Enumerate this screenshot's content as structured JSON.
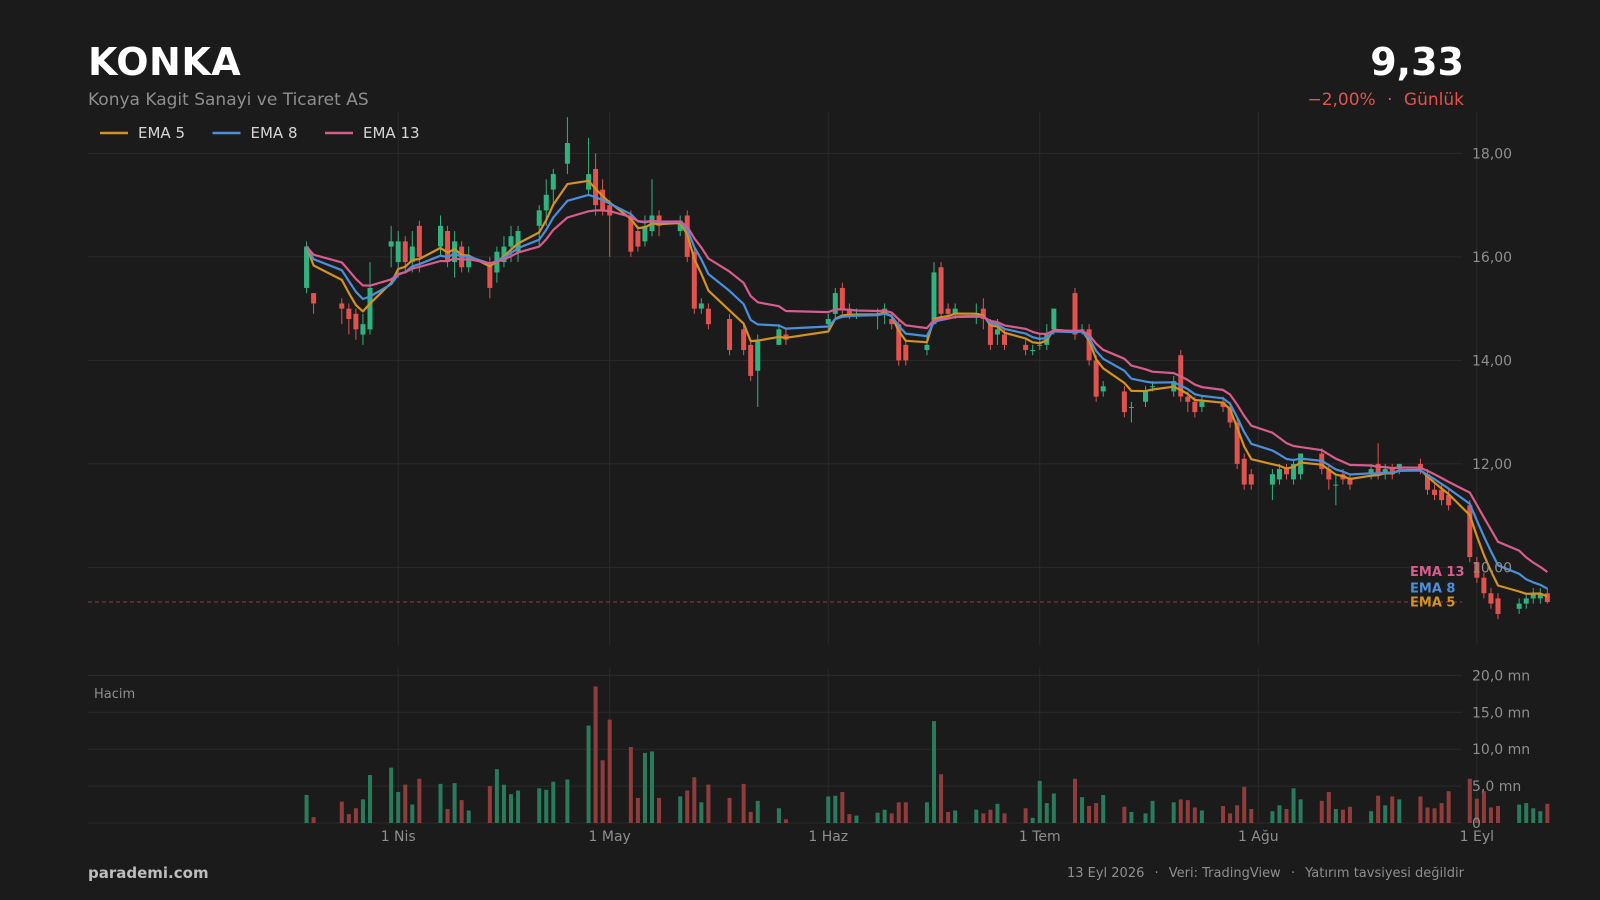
{
  "header": {
    "ticker": "KONKA",
    "company": "Konya Kagit Sanayi ve Ticaret AS",
    "price": "9,33",
    "change": "−2,00%",
    "separator": "·",
    "period": "Günlük",
    "change_color": "#e0534f"
  },
  "footer": {
    "brand": "parademi.com",
    "date": "13 Eyl 2026",
    "source": "Veri: TradingView",
    "disclaimer": "Yatırım tavsiyesi değildir"
  },
  "chart_data": {
    "type": "candlestick",
    "last_price": 9.33,
    "price_axis": {
      "min": 8.5,
      "max": 18.8,
      "ticks": [
        10,
        12,
        14,
        16,
        18
      ],
      "tick_labels": [
        "10,00",
        "12,00",
        "14,00",
        "16,00",
        "18,00"
      ]
    },
    "volume_axis": {
      "title": "Hacim",
      "min": 0,
      "max": 21,
      "ticks": [
        0,
        5,
        10,
        15,
        20
      ],
      "tick_labels": [
        "0",
        "5,0 mn",
        "10,0 mn",
        "15,0 mn",
        "20,0 mn"
      ]
    },
    "x_axis": {
      "start_day": 0,
      "end_day": 178,
      "ticks": [
        {
          "day": 22,
          "label": "1 Nis"
        },
        {
          "day": 52,
          "label": "1 May"
        },
        {
          "day": 83,
          "label": "1 Haz"
        },
        {
          "day": 113,
          "label": "1 Tem"
        },
        {
          "day": 144,
          "label": "1 Ağu"
        },
        {
          "day": 175,
          "label": "1 Eyl"
        }
      ]
    },
    "colors": {
      "up": "#2fb380",
      "down": "#e0534f",
      "volume_up": "#2a7a5c",
      "volume_down": "#8f3d3b",
      "ema5": "#d4921f",
      "ema8": "#4a8fdc",
      "ema13": "#d85c8e",
      "grid": "#2b2b2b",
      "last_line": "#8f3d3b"
    },
    "legend": [
      {
        "key": "ema5",
        "label": "EMA 5"
      },
      {
        "key": "ema8",
        "label": "EMA 8"
      },
      {
        "key": "ema13",
        "label": "EMA 13"
      }
    ],
    "candles": [
      [
        9,
        15.4,
        16.2,
        16.3,
        15.3,
        3.8
      ],
      [
        10,
        15.3,
        15.1,
        15.3,
        14.9,
        0.8
      ],
      [
        14,
        15.1,
        15.0,
        15.2,
        14.7,
        2.9
      ],
      [
        15,
        15.0,
        14.8,
        15.1,
        14.5,
        1.2
      ],
      [
        16,
        14.9,
        14.6,
        15.0,
        14.4,
        2.0
      ],
      [
        17,
        14.5,
        14.7,
        14.9,
        14.3,
        3.2
      ],
      [
        18,
        14.6,
        15.4,
        15.9,
        14.5,
        6.5
      ],
      [
        21,
        16.2,
        16.3,
        16.6,
        15.8,
        7.5
      ],
      [
        22,
        15.9,
        16.3,
        16.5,
        15.6,
        4.2
      ],
      [
        23,
        16.3,
        15.9,
        16.4,
        15.7,
        5.2
      ],
      [
        24,
        15.9,
        16.2,
        16.5,
        15.7,
        2.5
      ],
      [
        25,
        16.6,
        16.0,
        16.7,
        15.7,
        6.0
      ],
      [
        28,
        16.2,
        16.6,
        16.8,
        16.0,
        5.3
      ],
      [
        29,
        16.5,
        15.9,
        16.6,
        15.8,
        1.9
      ],
      [
        30,
        15.9,
        16.3,
        16.5,
        15.6,
        5.4
      ],
      [
        31,
        16.2,
        15.8,
        16.3,
        15.7,
        3.1
      ],
      [
        32,
        15.8,
        16.0,
        16.2,
        15.7,
        1.7
      ],
      [
        35,
        15.9,
        15.4,
        16.0,
        15.2,
        5.0
      ],
      [
        36,
        15.7,
        16.1,
        16.2,
        15.5,
        7.3
      ],
      [
        37,
        15.9,
        16.2,
        16.4,
        15.8,
        5.2
      ],
      [
        38,
        16.2,
        16.4,
        16.6,
        15.9,
        3.9
      ],
      [
        39,
        16.1,
        16.5,
        16.6,
        15.9,
        4.4
      ],
      [
        42,
        16.6,
        16.9,
        17.0,
        16.2,
        4.7
      ],
      [
        43,
        16.9,
        17.2,
        17.5,
        16.6,
        4.5
      ],
      [
        44,
        17.3,
        17.6,
        17.7,
        17.0,
        5.6
      ],
      [
        46,
        17.8,
        18.2,
        18.7,
        17.6,
        5.9
      ],
      [
        49,
        17.3,
        17.6,
        18.3,
        17.2,
        13.2
      ],
      [
        50,
        17.7,
        17.0,
        18.0,
        16.8,
        18.5
      ],
      [
        51,
        17.3,
        16.9,
        17.5,
        16.8,
        8.5
      ],
      [
        52,
        17.0,
        16.8,
        17.1,
        16.0,
        14.0
      ],
      [
        55,
        16.8,
        16.1,
        16.9,
        16.0,
        10.3
      ],
      [
        56,
        16.5,
        16.2,
        16.6,
        16.1,
        3.4
      ],
      [
        57,
        16.3,
        16.6,
        16.8,
        16.2,
        9.5
      ],
      [
        58,
        16.5,
        16.8,
        17.5,
        16.4,
        9.7
      ],
      [
        59,
        16.8,
        16.6,
        16.9,
        16.4,
        3.4
      ],
      [
        62,
        16.5,
        16.7,
        16.8,
        16.4,
        3.6
      ],
      [
        63,
        16.8,
        16.0,
        16.9,
        15.9,
        4.4
      ],
      [
        64,
        16.1,
        15.0,
        16.2,
        14.9,
        6.2
      ],
      [
        65,
        15.0,
        15.1,
        15.2,
        14.9,
        2.8
      ],
      [
        66,
        15.0,
        14.7,
        15.1,
        14.6,
        5.2
      ],
      [
        69,
        14.8,
        14.2,
        14.9,
        14.1,
        3.4
      ],
      [
        71,
        14.6,
        14.2,
        14.7,
        14.1,
        5.3
      ],
      [
        72,
        14.3,
        13.7,
        14.4,
        13.6,
        1.5
      ],
      [
        73,
        13.8,
        14.4,
        14.5,
        13.1,
        3.0
      ],
      [
        76,
        14.3,
        14.6,
        14.7,
        14.3,
        2.0
      ],
      [
        77,
        14.5,
        14.4,
        14.6,
        14.3,
        0.5
      ],
      [
        83,
        14.7,
        14.8,
        14.9,
        14.6,
        3.6
      ],
      [
        84,
        14.9,
        15.3,
        15.4,
        14.8,
        3.7
      ],
      [
        85,
        15.4,
        15.0,
        15.5,
        14.9,
        4.2
      ],
      [
        86,
        15.0,
        14.9,
        15.1,
        14.8,
        1.2
      ],
      [
        87,
        14.9,
        14.9,
        15.0,
        14.8,
        1.0
      ],
      [
        90,
        14.9,
        14.9,
        15.0,
        14.6,
        1.4
      ],
      [
        91,
        14.9,
        15.0,
        15.1,
        14.7,
        1.8
      ],
      [
        92,
        14.8,
        14.7,
        14.9,
        14.6,
        1.3
      ],
      [
        93,
        14.7,
        14.0,
        14.8,
        13.9,
        2.8
      ],
      [
        94,
        14.3,
        14.0,
        14.4,
        13.9,
        2.8
      ],
      [
        97,
        14.2,
        14.3,
        14.5,
        14.1,
        2.8
      ],
      [
        98,
        14.7,
        15.7,
        15.9,
        14.7,
        13.8
      ],
      [
        99,
        15.8,
        14.9,
        15.9,
        14.8,
        6.6
      ],
      [
        100,
        15.0,
        14.9,
        15.1,
        14.8,
        1.5
      ],
      [
        101,
        14.9,
        15.0,
        15.1,
        14.8,
        1.7
      ],
      [
        104,
        14.9,
        14.9,
        15.1,
        14.7,
        1.8
      ],
      [
        105,
        15.0,
        14.8,
        15.2,
        14.6,
        1.3
      ],
      [
        106,
        14.7,
        14.3,
        14.8,
        14.2,
        1.8
      ],
      [
        107,
        14.5,
        14.6,
        14.8,
        14.3,
        2.6
      ],
      [
        108,
        14.5,
        14.3,
        14.6,
        14.2,
        1.3
      ],
      [
        111,
        14.3,
        14.2,
        14.4,
        14.1,
        2.0
      ],
      [
        112,
        14.2,
        14.2,
        14.3,
        14.1,
        0.7
      ],
      [
        113,
        14.3,
        14.3,
        14.5,
        14.2,
        5.7
      ],
      [
        114,
        14.3,
        14.5,
        14.7,
        14.2,
        2.7
      ],
      [
        115,
        14.6,
        15.0,
        15.0,
        14.5,
        4.0
      ],
      [
        118,
        15.3,
        14.5,
        15.4,
        14.4,
        6.0
      ],
      [
        119,
        14.6,
        14.6,
        14.7,
        14.5,
        3.5
      ],
      [
        120,
        14.6,
        14.0,
        14.7,
        13.9,
        2.3
      ],
      [
        121,
        14.0,
        13.3,
        14.1,
        13.2,
        2.7
      ],
      [
        122,
        13.4,
        13.5,
        13.6,
        13.3,
        3.8
      ],
      [
        125,
        13.4,
        13.0,
        13.5,
        12.9,
        2.2
      ],
      [
        126,
        13.1,
        13.1,
        13.2,
        12.8,
        1.5
      ],
      [
        128,
        13.2,
        13.4,
        13.5,
        13.1,
        1.3
      ],
      [
        129,
        13.5,
        13.5,
        13.6,
        13.4,
        3.0
      ],
      [
        132,
        13.4,
        13.6,
        13.7,
        13.3,
        2.8
      ],
      [
        133,
        14.1,
        13.3,
        14.2,
        13.2,
        3.2
      ],
      [
        134,
        13.3,
        13.2,
        13.4,
        13.0,
        3.1
      ],
      [
        135,
        13.2,
        13.0,
        13.3,
        12.9,
        2.1
      ],
      [
        136,
        13.1,
        13.2,
        13.3,
        13.0,
        1.7
      ],
      [
        139,
        13.2,
        13.1,
        13.3,
        13.0,
        2.3
      ],
      [
        140,
        13.1,
        12.8,
        13.2,
        12.7,
        1.3
      ],
      [
        141,
        12.8,
        12.0,
        12.9,
        11.9,
        2.4
      ],
      [
        142,
        12.1,
        11.6,
        12.2,
        11.5,
        4.9
      ],
      [
        143,
        11.8,
        11.6,
        11.9,
        11.5,
        1.9
      ],
      [
        146,
        11.6,
        11.8,
        11.9,
        11.3,
        1.6
      ],
      [
        147,
        11.7,
        11.9,
        12.0,
        11.6,
        2.4
      ],
      [
        148,
        11.9,
        11.8,
        12.0,
        11.7,
        1.9
      ],
      [
        149,
        11.7,
        12.0,
        12.1,
        11.6,
        4.7
      ],
      [
        150,
        11.8,
        12.2,
        12.2,
        11.7,
        3.2
      ],
      [
        153,
        12.2,
        11.9,
        12.3,
        11.8,
        3.0
      ],
      [
        154,
        11.9,
        11.7,
        12.0,
        11.5,
        4.2
      ],
      [
        155,
        11.6,
        11.6,
        11.8,
        11.2,
        1.9
      ],
      [
        156,
        11.8,
        11.7,
        11.9,
        11.6,
        1.8
      ],
      [
        157,
        11.7,
        11.6,
        11.8,
        11.5,
        2.2
      ],
      [
        160,
        11.8,
        11.9,
        12.0,
        11.7,
        1.6
      ],
      [
        161,
        12.0,
        11.8,
        12.4,
        11.7,
        3.7
      ],
      [
        162,
        11.8,
        11.9,
        12.0,
        11.7,
        2.4
      ],
      [
        163,
        11.9,
        11.8,
        12.0,
        11.7,
        3.6
      ],
      [
        164,
        11.9,
        12.0,
        12.0,
        11.8,
        3.2
      ],
      [
        167,
        12.0,
        11.9,
        12.1,
        11.8,
        3.6
      ],
      [
        168,
        11.8,
        11.5,
        11.9,
        11.4,
        2.1
      ],
      [
        169,
        11.5,
        11.4,
        11.6,
        11.3,
        2.0
      ],
      [
        170,
        11.5,
        11.3,
        11.6,
        11.2,
        2.7
      ],
      [
        171,
        11.4,
        11.2,
        11.5,
        11.1,
        4.3
      ],
      [
        174,
        11.2,
        10.2,
        11.3,
        10.1,
        6.0
      ],
      [
        175,
        10.1,
        9.8,
        10.2,
        9.7,
        3.3
      ],
      [
        176,
        9.8,
        9.5,
        9.9,
        9.4,
        4.3
      ],
      [
        177,
        9.5,
        9.3,
        9.6,
        9.2,
        2.1
      ],
      [
        178,
        9.4,
        9.1,
        9.5,
        9.0,
        2.3
      ],
      [
        181,
        9.2,
        9.3,
        9.4,
        9.1,
        2.5
      ],
      [
        182,
        9.3,
        9.4,
        9.5,
        9.2,
        2.7
      ],
      [
        183,
        9.4,
        9.5,
        9.6,
        9.3,
        2.0
      ],
      [
        184,
        9.4,
        9.5,
        9.6,
        9.3,
        1.6
      ],
      [
        185,
        9.5,
        9.33,
        9.6,
        9.3,
        2.6
      ]
    ]
  }
}
